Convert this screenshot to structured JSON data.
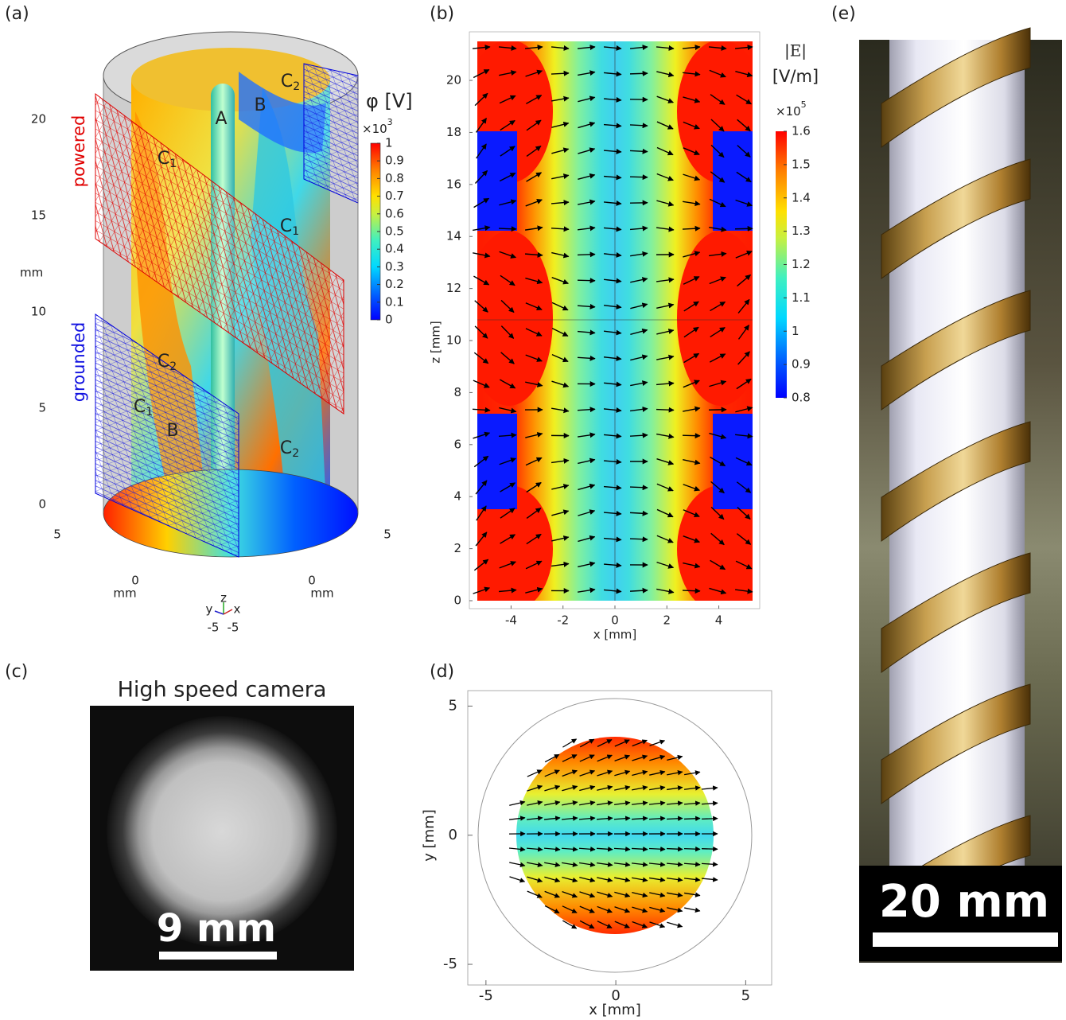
{
  "panel_a": {
    "label": "(a)",
    "potential_title": "φ [V]",
    "colorbar_scale": {
      "base": "×10",
      "sup": "3"
    },
    "colorbar_lim": [
      0,
      1
    ],
    "colorbar_ticks": [
      0,
      0.1,
      0.2,
      0.3,
      0.4,
      0.5,
      0.6,
      0.7,
      0.8,
      0.9,
      1
    ],
    "z_ticks": [
      0,
      5,
      10,
      15,
      20
    ],
    "z_unit": "mm",
    "y_ticks": [
      5,
      0
    ],
    "y_unit": "mm",
    "x_ticks": [
      5,
      0
    ],
    "x_unit": "mm",
    "triad": {
      "y": "y",
      "z": "z",
      "x": "x",
      "y_min": -5,
      "x_min": -5
    },
    "electrode_labels": [
      "powered",
      "grounded"
    ],
    "region_labels": [
      {
        "text": "A"
      },
      {
        "text": "B"
      },
      {
        "text": "C",
        "sub": "2"
      },
      {
        "text": "C",
        "sub": "1"
      },
      {
        "text": "C",
        "sub": "1"
      },
      {
        "text": "C",
        "sub": "2"
      },
      {
        "text": "C",
        "sub": "1"
      },
      {
        "text": "B"
      },
      {
        "text": "C",
        "sub": "2"
      }
    ]
  },
  "panel_b": {
    "label": "(b)",
    "xlabel": "x [mm]",
    "ylabel": "z [mm]",
    "xlim": [
      -5.3,
      5.3
    ],
    "ylim": [
      0,
      21.5
    ],
    "xticks": [
      -4,
      -2,
      0,
      2,
      4
    ],
    "yticks": [
      0,
      2,
      4,
      6,
      8,
      10,
      12,
      14,
      16,
      18,
      20
    ],
    "colorbar_title": "|E|",
    "colorbar_unit": "[V/m]",
    "colorbar_scale": {
      "base": "×10",
      "sup": "5"
    },
    "colorbar_lim": [
      0.8,
      1.6
    ],
    "colorbar_ticks": [
      0.8,
      0.9,
      1,
      1.1,
      1.2,
      1.3,
      1.4,
      1.5,
      1.6
    ]
  },
  "panel_c": {
    "label": "(c)",
    "title": "High speed camera",
    "scale_bar": "9 mm"
  },
  "panel_d": {
    "label": "(d)",
    "xlabel": "x [mm]",
    "ylabel": "y [mm]",
    "xlim": [
      -5.7,
      6
    ],
    "ylim": [
      -5.8,
      5.6
    ],
    "xticks": [
      -5,
      0,
      5
    ],
    "yticks": [
      -5,
      0,
      5
    ]
  },
  "panel_e": {
    "label": "(e)",
    "scale_bar": "20 mm"
  }
}
